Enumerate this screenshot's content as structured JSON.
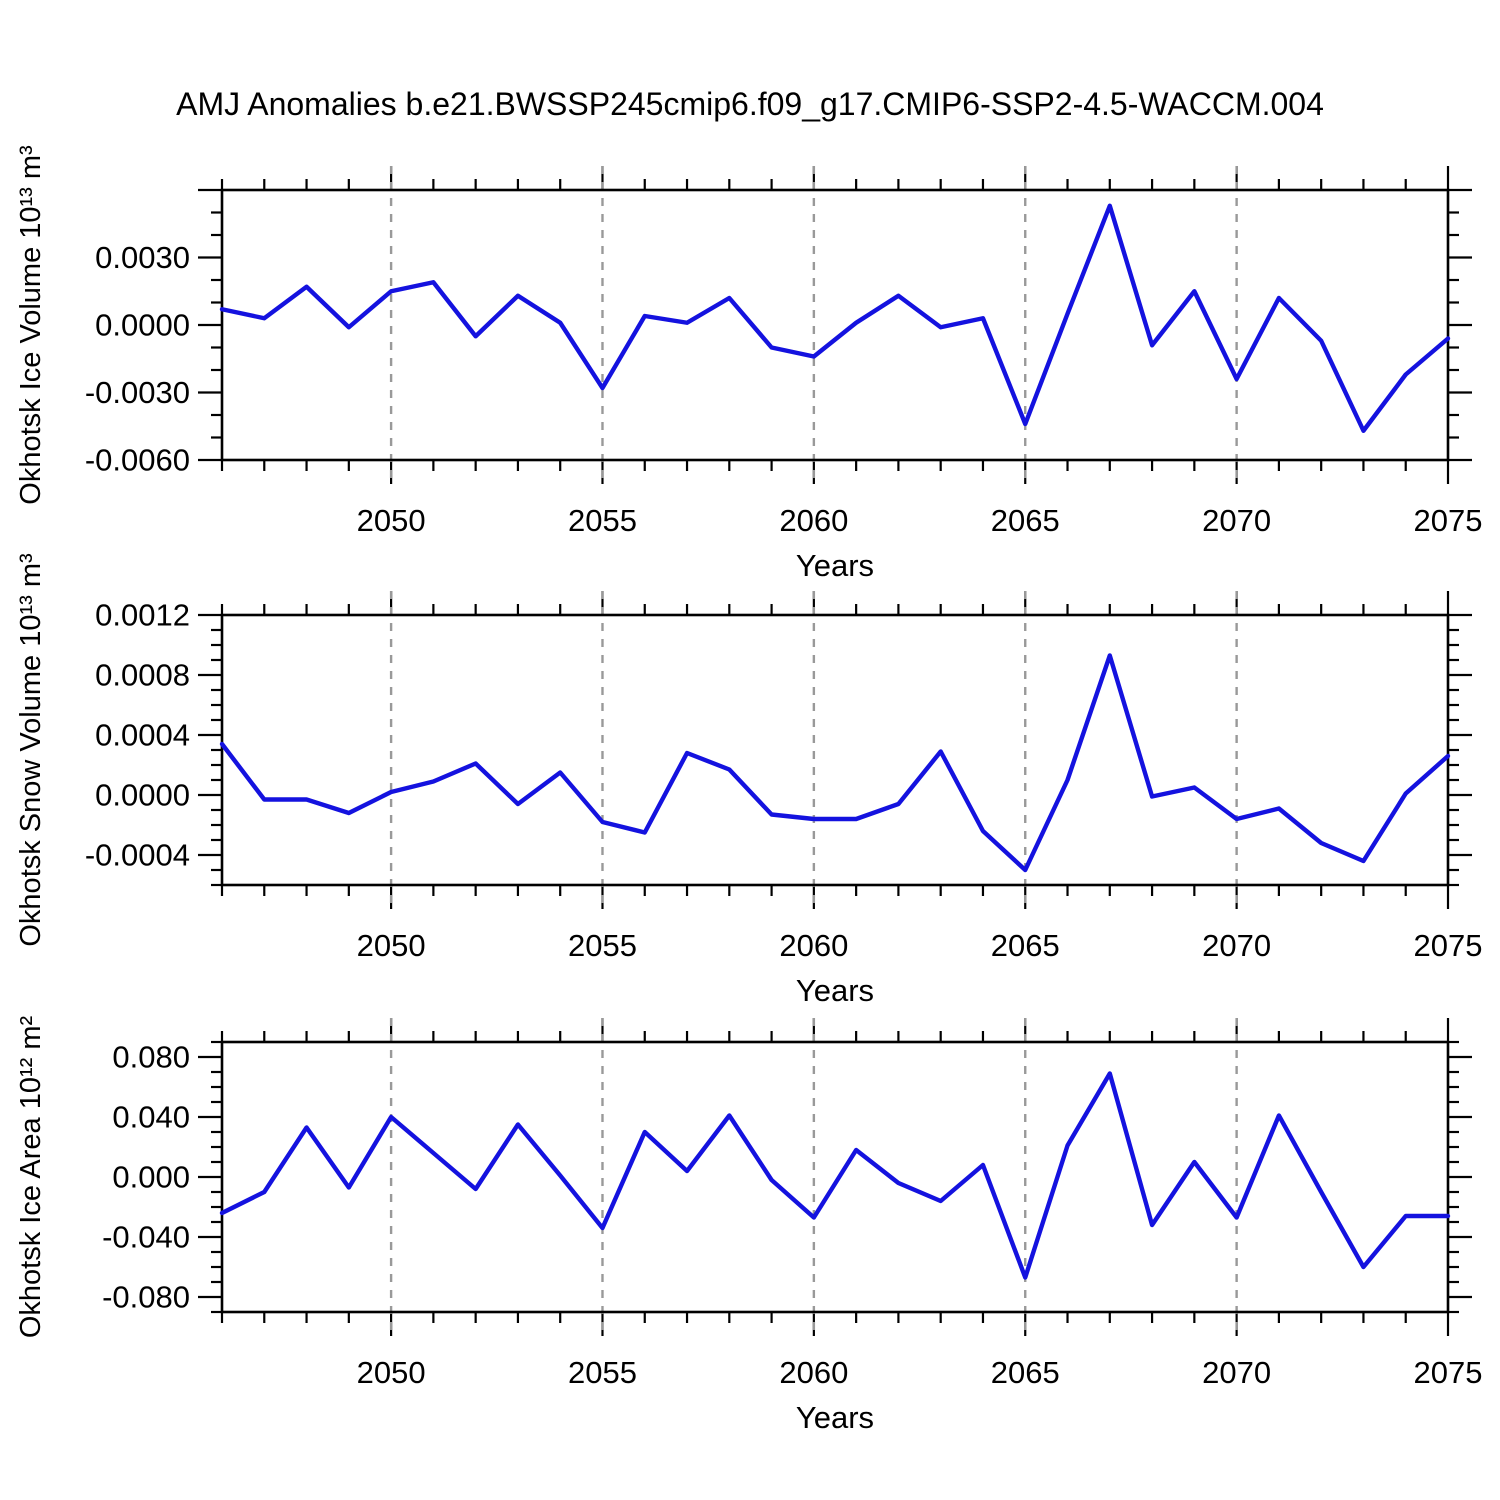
{
  "title": "AMJ Anomalies b.e21.BWSSP245cmip6.f09_g17.CMIP6-SSP2-4.5-WACCM.004",
  "colors": {
    "line": "#1412df",
    "grid": "#999999",
    "axis": "#000000",
    "background": "#ffffff"
  },
  "chart_data": [
    {
      "type": "line",
      "name": "ice-volume",
      "ylabel": "Okhotsk Ice Volume 10¹³ m³",
      "xlabel": "Years",
      "legend": null,
      "grid": "x-dashed",
      "xlim": [
        2046,
        2075
      ],
      "ylim": [
        -0.006,
        0.006
      ],
      "x": [
        2046,
        2047,
        2048,
        2049,
        2050,
        2051,
        2052,
        2053,
        2054,
        2055,
        2056,
        2057,
        2058,
        2059,
        2060,
        2061,
        2062,
        2063,
        2064,
        2065,
        2066,
        2067,
        2068,
        2069,
        2070,
        2071,
        2072,
        2073,
        2074,
        2075
      ],
      "values": [
        0.0007,
        0.0003,
        0.0017,
        -0.0001,
        0.0015,
        0.0019,
        -0.0005,
        0.0013,
        0.0001,
        -0.0028,
        0.0004,
        0.0001,
        0.0012,
        -0.001,
        -0.0014,
        0.0001,
        0.0013,
        -0.0001,
        0.0003,
        -0.0044,
        0.0005,
        0.0053,
        -0.0009,
        0.0015,
        -0.0024,
        0.0012,
        -0.0007,
        -0.0047,
        -0.0022,
        -0.0006
      ],
      "ytick_values": [
        0.006,
        0.003,
        0.0,
        -0.003,
        -0.006
      ],
      "ytick_labels": [
        "",
        "0.0030",
        "0.0000",
        "-0.0030",
        "-0.0060"
      ],
      "ytick_minor_step": 0.001,
      "xtick_major": [
        2050,
        2055,
        2060,
        2065,
        2070,
        2075
      ],
      "xtick_minor_step": 1,
      "grid_years": [
        2050,
        2055,
        2060,
        2065,
        2070
      ]
    },
    {
      "type": "line",
      "name": "snow-volume",
      "ylabel": "Okhotsk Snow Volume 10¹³ m³",
      "xlabel": "Years",
      "legend": null,
      "grid": "x-dashed",
      "xlim": [
        2046,
        2075
      ],
      "ylim": [
        -0.0006,
        0.0012
      ],
      "x": [
        2046,
        2047,
        2048,
        2049,
        2050,
        2051,
        2052,
        2053,
        2054,
        2055,
        2056,
        2057,
        2058,
        2059,
        2060,
        2061,
        2062,
        2063,
        2064,
        2065,
        2066,
        2067,
        2068,
        2069,
        2070,
        2071,
        2072,
        2073,
        2074,
        2075
      ],
      "values": [
        0.00034,
        -3e-05,
        -3e-05,
        -0.00012,
        2e-05,
        9e-05,
        0.00021,
        -6e-05,
        0.00015,
        -0.00018,
        -0.00025,
        0.00028,
        0.00017,
        -0.00013,
        -0.00016,
        -0.00016,
        -6e-05,
        0.00029,
        -0.00024,
        -0.0005,
        0.0001,
        0.00093,
        -1e-05,
        5e-05,
        -0.00016,
        -9e-05,
        -0.00032,
        -0.00044,
        1e-05,
        0.00026
      ],
      "ytick_values": [
        0.0012,
        0.0008,
        0.0004,
        0.0,
        -0.0004
      ],
      "ytick_labels": [
        "0.0012",
        "0.0008",
        "0.0004",
        "0.0000",
        "-0.0004"
      ],
      "ytick_minor_step": 0.0001,
      "xtick_major": [
        2050,
        2055,
        2060,
        2065,
        2070,
        2075
      ],
      "xtick_minor_step": 1,
      "grid_years": [
        2050,
        2055,
        2060,
        2065,
        2070
      ]
    },
    {
      "type": "line",
      "name": "ice-area",
      "ylabel": "Okhotsk Ice Area 10¹² m²",
      "xlabel": "Years",
      "legend": null,
      "grid": "x-dashed",
      "xlim": [
        2046,
        2075
      ],
      "ylim": [
        -0.09,
        0.09
      ],
      "x": [
        2046,
        2047,
        2048,
        2049,
        2050,
        2051,
        2052,
        2053,
        2054,
        2055,
        2056,
        2057,
        2058,
        2059,
        2060,
        2061,
        2062,
        2063,
        2064,
        2065,
        2066,
        2067,
        2068,
        2069,
        2070,
        2071,
        2072,
        2073,
        2074,
        2075
      ],
      "values": [
        -0.024,
        -0.01,
        0.033,
        -0.007,
        0.04,
        0.016,
        -0.008,
        0.035,
        0.001,
        -0.034,
        0.03,
        0.004,
        0.041,
        -0.002,
        -0.027,
        0.018,
        -0.004,
        -0.016,
        0.008,
        -0.067,
        0.021,
        0.069,
        -0.032,
        0.01,
        -0.027,
        0.041,
        -0.01,
        -0.06,
        -0.026,
        -0.026
      ],
      "ytick_values": [
        0.08,
        0.04,
        0.0,
        -0.04,
        -0.08
      ],
      "ytick_labels": [
        "0.080",
        "0.040",
        "0.000",
        "-0.040",
        "-0.080"
      ],
      "ytick_minor_step": 0.01,
      "xtick_major": [
        2050,
        2055,
        2060,
        2065,
        2070,
        2075
      ],
      "xtick_minor_step": 1,
      "grid_years": [
        2050,
        2055,
        2060,
        2065,
        2070
      ]
    }
  ]
}
